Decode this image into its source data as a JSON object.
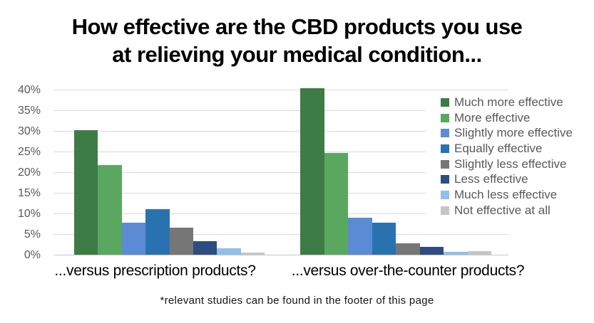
{
  "title": {
    "line1": "How effective are the CBD products you use",
    "line2": "at relieving your medical condition..."
  },
  "footnote": "*relevant studies can be found in the footer of this page",
  "colors": {
    "gridline": "#d9d9d9",
    "axis_line": "#c6c6c6",
    "tick_text": "#595959",
    "legend_text": "#595959",
    "title_text": "#000000",
    "category_text": "#000000"
  },
  "chart_data": {
    "type": "bar",
    "title": "How effective are the CBD products you use at relieving your medical condition...",
    "categories": [
      "...versus prescription products?",
      "...versus over-the-counter products?"
    ],
    "series": [
      {
        "name": "Much more effective",
        "color": "#3e7c46",
        "values": [
          30.2,
          40.4
        ]
      },
      {
        "name": "More effective",
        "color": "#5aa85f",
        "values": [
          21.7,
          24.7
        ]
      },
      {
        "name": "Slightly more effective",
        "color": "#5b8bd5",
        "values": [
          7.8,
          9.0
        ]
      },
      {
        "name": "Equally effective",
        "color": "#2873af",
        "values": [
          11.0,
          7.8
        ]
      },
      {
        "name": "Slightly less effective",
        "color": "#767676",
        "values": [
          6.5,
          2.7
        ]
      },
      {
        "name": "Less effective",
        "color": "#2c4d7e",
        "values": [
          3.2,
          1.9
        ]
      },
      {
        "name": "Much less effective",
        "color": "#8fc0e9",
        "values": [
          1.6,
          0.7
        ]
      },
      {
        "name": "Not effective at all",
        "color": "#c6c6c6",
        "values": [
          0.6,
          0.8
        ]
      }
    ],
    "xlabel": "",
    "ylabel": "",
    "ylim": [
      0,
      40
    ],
    "y_ticks": [
      "40%",
      "35%",
      "30%",
      "25%",
      "20%",
      "15%",
      "10%",
      "5%",
      "0%"
    ],
    "grid": true,
    "legend_position": "right-overlay"
  }
}
